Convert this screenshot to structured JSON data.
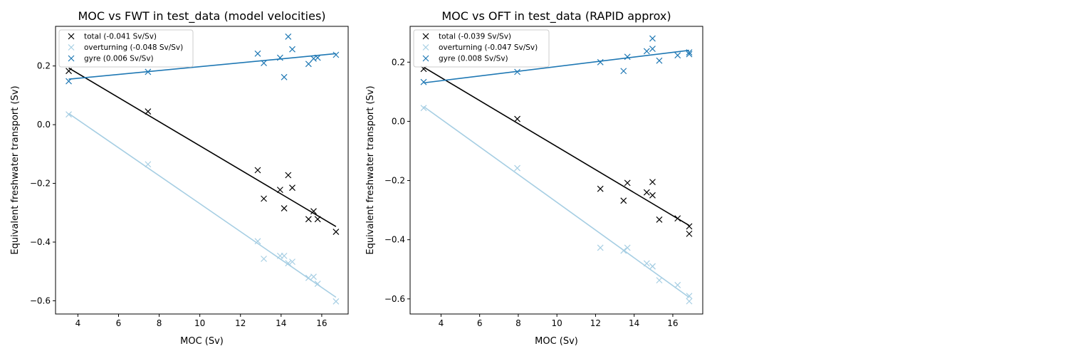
{
  "chart_data": [
    {
      "type": "scatter",
      "title": "MOC vs FWT in test_data (model velocities)",
      "xlabel": "MOC (Sv)",
      "ylabel": "Equivalent freshwater transport (Sv)",
      "xlim": [
        2.9,
        17.3
      ],
      "ylim": [
        -0.645,
        0.335
      ],
      "xticks": [
        4,
        6,
        8,
        10,
        12,
        14,
        16
      ],
      "yticks": [
        -0.6,
        -0.4,
        -0.2,
        0.0,
        0.2
      ],
      "ytick_labels": [
        "−0.6",
        "−0.4",
        "−0.2",
        "0.0",
        "0.2"
      ],
      "grid": false,
      "legend_position": "top-left",
      "x": [
        3.55,
        7.45,
        12.85,
        13.15,
        13.95,
        14.15,
        14.35,
        14.55,
        15.35,
        15.6,
        15.8,
        16.7
      ],
      "series": [
        {
          "name": "total (-0.041 Sv/Sv)",
          "color": "#000000",
          "values": [
            0.183,
            0.045,
            -0.155,
            -0.252,
            -0.222,
            -0.285,
            -0.172,
            -0.215,
            -0.322,
            -0.295,
            -0.322,
            -0.365
          ],
          "fit": [
            [
              3.55,
              0.193
            ],
            [
              16.7,
              -0.347
            ]
          ]
        },
        {
          "name": "overturning (-0.048 Sv/Sv)",
          "color": "#a6cee3",
          "values": [
            0.035,
            -0.135,
            -0.397,
            -0.457,
            -0.447,
            -0.447,
            -0.472,
            -0.467,
            -0.522,
            -0.518,
            -0.542,
            -0.602
          ],
          "fit": [
            [
              3.55,
              0.038
            ],
            [
              16.7,
              -0.588
            ]
          ]
        },
        {
          "name": "gyre (0.006 Sv/Sv)",
          "color": "#1f78b4",
          "values": [
            0.148,
            0.18,
            0.242,
            0.21,
            0.228,
            0.162,
            0.3,
            0.257,
            0.207,
            0.225,
            0.228,
            0.238
          ],
          "fit": [
            [
              3.55,
              0.155
            ],
            [
              16.7,
              0.242
            ]
          ]
        }
      ]
    },
    {
      "type": "scatter",
      "title": "MOC vs OFT in test_data (RAPID approx)",
      "xlabel": "MOC (Sv)",
      "ylabel": "Equivalent freshwater transport (Sv)",
      "xlim": [
        2.4,
        17.55
      ],
      "ylim": [
        -0.651,
        0.321
      ],
      "xticks": [
        4,
        6,
        8,
        10,
        12,
        14,
        16
      ],
      "yticks": [
        -0.6,
        -0.4,
        -0.2,
        0.0,
        0.2
      ],
      "ytick_labels": [
        "−0.6",
        "−0.4",
        "−0.2",
        "0.0",
        "0.2"
      ],
      "grid": false,
      "legend_position": "top-left",
      "x": [
        3.1,
        7.95,
        12.25,
        13.45,
        13.65,
        14.65,
        14.95,
        14.95,
        15.3,
        16.25,
        16.85,
        16.85
      ],
      "series": [
        {
          "name": "total (-0.039 Sv/Sv)",
          "color": "#000000",
          "values": [
            0.177,
            0.008,
            -0.228,
            -0.268,
            -0.208,
            -0.24,
            -0.205,
            -0.25,
            -0.332,
            -0.328,
            -0.355,
            -0.38
          ],
          "fit": [
            [
              3.1,
              0.183
            ],
            [
              16.85,
              -0.352
            ]
          ]
        },
        {
          "name": "overturning (-0.047 Sv/Sv)",
          "color": "#a6cee3",
          "values": [
            0.045,
            -0.158,
            -0.427,
            -0.437,
            -0.427,
            -0.48,
            -0.49,
            -0.49,
            -0.537,
            -0.553,
            -0.59,
            -0.608
          ],
          "fit": [
            [
              3.1,
              0.05
            ],
            [
              16.85,
              -0.595
            ]
          ]
        },
        {
          "name": "gyre (0.008 Sv/Sv)",
          "color": "#1f78b4",
          "values": [
            0.133,
            0.167,
            0.2,
            0.17,
            0.218,
            0.237,
            0.28,
            0.245,
            0.205,
            0.223,
            0.233,
            0.227
          ],
          "fit": [
            [
              3.1,
              0.13
            ],
            [
              16.85,
              0.24
            ]
          ]
        }
      ]
    }
  ]
}
